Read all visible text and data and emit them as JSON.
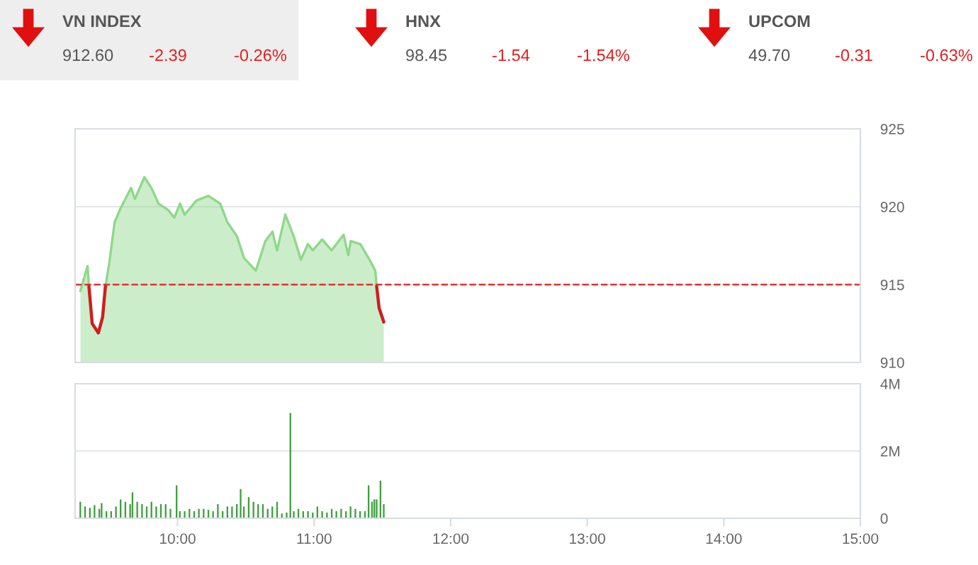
{
  "chart_data": [
    {
      "type": "other",
      "annotations": [
        "VN INDEX",
        "912.60",
        "-2.39",
        "-0.26%",
        "HNX",
        "98.45",
        "-1.54",
        "-1.54%",
        "UPCOM",
        "49.70",
        "-0.31",
        "-0.63%"
      ]
    },
    {
      "type": "area",
      "xlim": [
        9.25,
        15
      ],
      "ylim": [
        910,
        925
      ],
      "yticks": [
        910,
        915,
        920,
        925
      ],
      "grid": "y",
      "tick_labels": "y",
      "x": [
        9.289,
        9.341,
        9.351,
        9.375,
        9.42,
        9.451,
        9.472,
        9.497,
        9.539,
        9.583,
        9.635,
        9.659,
        9.688,
        9.757,
        9.809,
        9.861,
        9.93,
        9.976,
        10.018,
        10.052,
        10.139,
        10.226,
        10.313,
        10.365,
        10.435,
        10.487,
        10.573,
        10.643,
        10.695,
        10.729,
        10.789,
        10.851,
        10.903,
        10.955,
        10.99,
        11.059,
        11.128,
        11.216,
        11.25,
        11.268,
        11.339,
        11.406,
        11.448,
        11.458,
        11.476,
        11.51
      ],
      "series": [
        {
          "type": "area",
          "color": "#8ed88a",
          "values": [
            914.6,
            916.2,
            914.9,
            912.5,
            911.9,
            912.9,
            914.9,
            916.2,
            919.0,
            919.9,
            920.8,
            921.2,
            920.5,
            921.9,
            921.2,
            920.2,
            919.8,
            919.3,
            920.2,
            919.5,
            920.4,
            920.7,
            920.2,
            919.0,
            918.1,
            916.7,
            915.9,
            917.8,
            918.4,
            917.2,
            919.5,
            918.1,
            916.6,
            917.6,
            917.2,
            917.9,
            917.2,
            918.2,
            916.9,
            917.8,
            917.6,
            916.6,
            915.9,
            914.9,
            913.5,
            912.6
          ]
        },
        {
          "type": "line",
          "color": "#cc1f1f",
          "values": [
            null,
            null,
            914.9,
            912.5,
            911.9,
            912.9,
            914.9,
            null,
            null,
            null,
            null,
            null,
            null,
            null,
            null,
            null,
            null,
            null,
            null,
            null,
            null,
            null,
            null,
            null,
            null,
            null,
            null,
            null,
            null,
            null,
            null,
            null,
            null,
            null,
            null,
            null,
            null,
            null,
            null,
            null,
            null,
            null,
            null,
            914.9,
            913.5,
            912.6
          ]
        }
      ],
      "ref_lines": [
        {
          "axis": "y",
          "value": 915,
          "color": "#e03030",
          "line_style": "dashed"
        }
      ]
    },
    {
      "type": "bar",
      "xlim": [
        9.25,
        15
      ],
      "ylim": [
        0,
        4000000
      ],
      "yticks": [
        0,
        {
          "value": 2000000,
          "label": "2M"
        },
        {
          "value": 4000000,
          "label": "4M"
        }
      ],
      "xticks": [
        {
          "value": 10,
          "label": "10:00"
        },
        {
          "value": 11,
          "label": "11:00"
        },
        {
          "value": 12,
          "label": "12:00"
        },
        {
          "value": 13,
          "label": "13:00"
        },
        {
          "value": 14,
          "label": "14:00"
        },
        {
          "value": 15,
          "label": "15:00"
        }
      ],
      "grid": "y",
      "color": "#3f9f3f",
      "x": [
        9.288,
        9.323,
        9.358,
        9.392,
        9.427,
        9.444,
        9.479,
        9.514,
        9.549,
        9.583,
        9.618,
        9.653,
        9.67,
        9.705,
        9.74,
        9.774,
        9.809,
        9.844,
        9.878,
        9.913,
        9.948,
        9.993,
        10.017,
        10.052,
        10.087,
        10.122,
        10.156,
        10.191,
        10.226,
        10.26,
        10.295,
        10.33,
        10.365,
        10.399,
        10.434,
        10.462,
        10.486,
        10.521,
        10.556,
        10.59,
        10.625,
        10.66,
        10.694,
        10.729,
        10.764,
        10.799,
        10.826,
        10.851,
        10.885,
        10.92,
        10.955,
        10.99,
        11.024,
        11.059,
        11.094,
        11.129,
        11.163,
        11.198,
        11.233,
        11.267,
        11.302,
        11.337,
        11.372,
        11.399,
        11.424,
        11.441,
        11.458,
        11.486,
        11.51
      ],
      "values": [
        490000,
        350000,
        310000,
        390000,
        280000,
        450000,
        210000,
        210000,
        350000,
        560000,
        490000,
        420000,
        770000,
        490000,
        420000,
        350000,
        490000,
        350000,
        420000,
        420000,
        280000,
        980000,
        210000,
        210000,
        280000,
        210000,
        280000,
        280000,
        250000,
        210000,
        420000,
        210000,
        350000,
        350000,
        420000,
        870000,
        350000,
        630000,
        490000,
        420000,
        420000,
        280000,
        350000,
        490000,
        140000,
        170000,
        3130000,
        210000,
        280000,
        210000,
        210000,
        170000,
        350000,
        210000,
        170000,
        280000,
        210000,
        280000,
        210000,
        350000,
        280000,
        210000,
        210000,
        980000,
        490000,
        560000,
        560000,
        1120000,
        420000
      ]
    }
  ]
}
